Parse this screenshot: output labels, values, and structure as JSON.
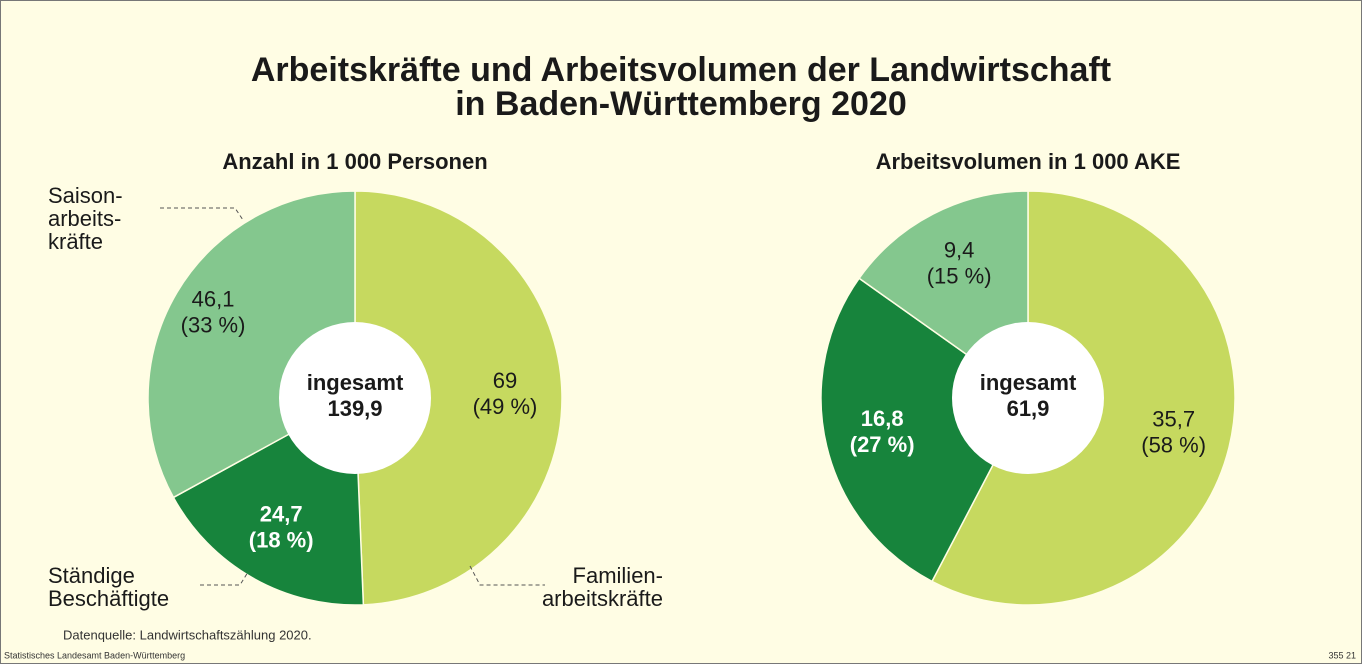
{
  "title": [
    "Arbeitskräfte und Arbeitsvolumen der Landwirtschaft",
    "in Baden-Württemberg 2020"
  ],
  "source": "Datenquelle: Landwirtschaftszählung 2020.",
  "publisher": "Statistisches Landesamt Baden-Württemberg",
  "code": "355 21",
  "chart_data": [
    {
      "type": "pie",
      "title": "Anzahl in 1 000 Personen",
      "center_label": "ingesamt",
      "total": 139.9,
      "total_label": "139,9",
      "categories": [
        [
          "Familien-",
          "arbeitskräfte"
        ],
        [
          "Ständige",
          "Beschäftigte"
        ],
        [
          "Saison-",
          "arbeits-",
          "kräfte"
        ]
      ],
      "values": [
        69,
        24.7,
        46.1
      ],
      "value_labels": [
        "69",
        "24,7",
        "46,1"
      ],
      "percents": [
        49,
        18,
        33
      ],
      "percent_labels": [
        "(49 %)",
        "(18 %)",
        "(33 %)"
      ],
      "colors": [
        "#c6d95f",
        "#17843c",
        "#84c78e"
      ],
      "label_colors": [
        "#1a1a1a",
        "#ffffff",
        "#1a1a1a"
      ]
    },
    {
      "type": "pie",
      "title": "Arbeitsvolumen in 1 000 AKE",
      "center_label": "ingesamt",
      "total": 61.9,
      "total_label": "61,9",
      "values": [
        35.7,
        16.8,
        9.4
      ],
      "value_labels": [
        "35,7",
        "16,8",
        "9,4"
      ],
      "percents": [
        58,
        27,
        15
      ],
      "percent_labels": [
        "(58 %)",
        "(27 %)",
        "(15 %)"
      ],
      "colors": [
        "#c6d95f",
        "#17843c",
        "#84c78e"
      ],
      "label_colors": [
        "#1a1a1a",
        "#ffffff",
        "#1a1a1a"
      ]
    }
  ]
}
